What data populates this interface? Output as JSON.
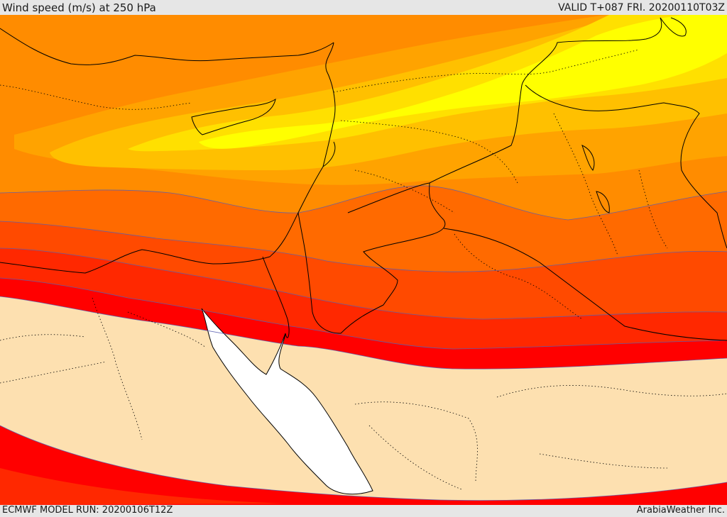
{
  "header": {
    "title": "Wind speed (m/s) at 250 hPa",
    "valid_time": "VALID T+087 FRI. 20200110T03Z"
  },
  "footer": {
    "model_run": "ECMWF MODEL RUN: 20200106T12Z",
    "provider": "ArabiaWeather Inc."
  },
  "map": {
    "variable": "wind speed",
    "level": "250 hPa",
    "color_scale": [
      "#fde0b0",
      "#ff0000",
      "#ff2800",
      "#ff4a00",
      "#ff6a00",
      "#ff8c00",
      "#ffa300",
      "#ffc000",
      "#ffe000",
      "#ffff00"
    ],
    "sea_color": "#ffffff",
    "boundary_color": "#000000",
    "contour_line_color": "#5a5fb0"
  }
}
